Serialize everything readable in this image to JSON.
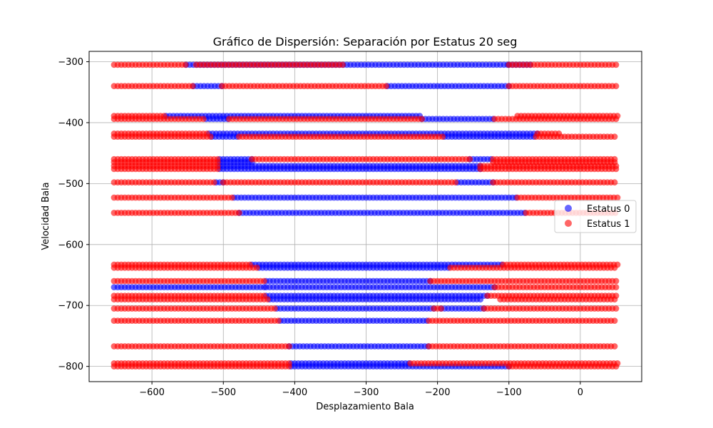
{
  "chart_data": {
    "type": "scatter",
    "title": "Gráfico de Dispersión: Separación por Estatus 20 seg",
    "xlabel": "Desplazamiento Bala",
    "ylabel": "Velocidad Bala",
    "xlim": [
      -688,
      86
    ],
    "ylim": [
      -825,
      -283
    ],
    "xticks": [
      -600,
      -500,
      -400,
      -300,
      -200,
      -100,
      0
    ],
    "yticks": [
      -300,
      -400,
      -500,
      -600,
      -700,
      -800
    ],
    "xtick_labels": [
      "−600",
      "−500",
      "−400",
      "−300",
      "−200",
      "−100",
      "0"
    ],
    "ytick_labels": [
      "−300",
      "−400",
      "−500",
      "−600",
      "−700",
      "−800"
    ],
    "grid": true,
    "legend": "center-right",
    "x_range": [
      -653,
      52
    ],
    "series": [
      {
        "name": "Estatus 0",
        "color": "#0000ff",
        "alpha": 0.6,
        "rows": [
          {
            "y": -305,
            "segments": [
              [
                -552,
                -100
              ],
              [
                -100,
                -66
              ]
            ]
          },
          {
            "y": -340,
            "segments": [
              [
                -542,
                -502
              ],
              [
                -270,
                -100
              ]
            ]
          },
          {
            "y": -389,
            "segments": [
              [
                -580,
                -222
              ]
            ]
          },
          {
            "y": -394,
            "segments": [
              [
                -524,
                -492
              ],
              [
                -222,
                -120
              ]
            ]
          },
          {
            "y": -418,
            "segments": [
              [
                -520,
                -60
              ]
            ]
          },
          {
            "y": -423,
            "segments": [
              [
                -516,
                -478
              ],
              [
                -190,
                -62
              ]
            ]
          },
          {
            "y": -460,
            "segments": [
              [
                -505,
                -460
              ],
              [
                -155,
                -122
              ]
            ]
          },
          {
            "y": -465,
            "segments": [
              [
                -505,
                -460
              ]
            ]
          },
          {
            "y": -471,
            "segments": [
              [
                -505,
                -140
              ]
            ]
          },
          {
            "y": -476,
            "segments": [
              [
                -505,
                -140
              ]
            ]
          },
          {
            "y": -498,
            "segments": [
              [
                -510,
                -500
              ],
              [
                -172,
                -122
              ]
            ]
          },
          {
            "y": -523,
            "segments": [
              [
                -485,
                -88
              ]
            ]
          },
          {
            "y": -548,
            "segments": [
              [
                -478,
                -76
              ]
            ]
          },
          {
            "y": -633,
            "segments": [
              [
                -460,
                -108
              ]
            ]
          },
          {
            "y": -638,
            "segments": [
              [
                -450,
                -182
              ]
            ]
          },
          {
            "y": -660,
            "segments": [
              [
                -440,
                -210
              ]
            ]
          },
          {
            "y": -670,
            "segments": [
              [
                -653,
                -440
              ],
              [
                -440,
                -120
              ]
            ]
          },
          {
            "y": -684,
            "segments": [
              [
                -440,
                -130
              ]
            ]
          },
          {
            "y": -690,
            "segments": [
              [
                -435,
                -140
              ]
            ]
          },
          {
            "y": -705,
            "segments": [
              [
                -425,
                -205
              ],
              [
                -195,
                -135
              ]
            ]
          },
          {
            "y": -725,
            "segments": [
              [
                -420,
                -212
              ]
            ]
          },
          {
            "y": -767,
            "segments": [
              [
                -408,
                -212
              ]
            ]
          },
          {
            "y": -795,
            "segments": [
              [
                -405,
                -238
              ]
            ]
          },
          {
            "y": -800,
            "segments": [
              [
                -405,
                -100
              ]
            ]
          }
        ]
      },
      {
        "name": "Estatus 1",
        "color": "#ff0000",
        "alpha": 0.6,
        "rows": [
          {
            "y": -305,
            "segments": [
              [
                -653,
                -552
              ],
              [
                -538,
                -330
              ],
              [
                -100,
                52
              ]
            ]
          },
          {
            "y": -340,
            "segments": [
              [
                -653,
                -542
              ],
              [
                -502,
                -270
              ],
              [
                -100,
                52
              ]
            ]
          },
          {
            "y": -389,
            "segments": [
              [
                -653,
                -580
              ],
              [
                -88,
                52
              ]
            ]
          },
          {
            "y": -394,
            "segments": [
              [
                -653,
                -524
              ],
              [
                -492,
                -222
              ],
              [
                -120,
                52
              ]
            ]
          },
          {
            "y": -418,
            "segments": [
              [
                -653,
                -520
              ],
              [
                -60,
                -30
              ]
            ]
          },
          {
            "y": -423,
            "segments": [
              [
                -653,
                -516
              ],
              [
                -478,
                -190
              ],
              [
                -62,
                52
              ]
            ]
          },
          {
            "y": -460,
            "segments": [
              [
                -653,
                -505
              ],
              [
                -460,
                -155
              ],
              [
                -122,
                52
              ]
            ]
          },
          {
            "y": -465,
            "segments": [
              [
                -653,
                -505
              ],
              [
                -122,
                52
              ]
            ]
          },
          {
            "y": -471,
            "segments": [
              [
                -653,
                -505
              ],
              [
                -140,
                52
              ]
            ]
          },
          {
            "y": -476,
            "segments": [
              [
                -653,
                -505
              ],
              [
                -140,
                52
              ]
            ]
          },
          {
            "y": -498,
            "segments": [
              [
                -653,
                -510
              ],
              [
                -500,
                -172
              ],
              [
                -122,
                52
              ]
            ]
          },
          {
            "y": -523,
            "segments": [
              [
                -653,
                -485
              ],
              [
                -88,
                52
              ]
            ]
          },
          {
            "y": -548,
            "segments": [
              [
                -653,
                -478
              ],
              [
                -76,
                52
              ]
            ]
          },
          {
            "y": -633,
            "segments": [
              [
                -653,
                -460
              ],
              [
                -108,
                52
              ]
            ]
          },
          {
            "y": -638,
            "segments": [
              [
                -653,
                -450
              ],
              [
                -182,
                52
              ]
            ]
          },
          {
            "y": -660,
            "segments": [
              [
                -653,
                -440
              ],
              [
                -210,
                52
              ]
            ]
          },
          {
            "y": -670,
            "segments": [
              [
                -120,
                52
              ]
            ]
          },
          {
            "y": -684,
            "segments": [
              [
                -653,
                -440
              ],
              [
                -130,
                52
              ]
            ]
          },
          {
            "y": -690,
            "segments": [
              [
                -653,
                -435
              ],
              [
                -112,
                52
              ]
            ]
          },
          {
            "y": -705,
            "segments": [
              [
                -653,
                -425
              ],
              [
                -205,
                -195
              ],
              [
                -135,
                52
              ]
            ]
          },
          {
            "y": -725,
            "segments": [
              [
                -653,
                -420
              ],
              [
                -212,
                52
              ]
            ]
          },
          {
            "y": -767,
            "segments": [
              [
                -653,
                -408
              ],
              [
                -212,
                52
              ]
            ]
          },
          {
            "y": -795,
            "segments": [
              [
                -653,
                -405
              ],
              [
                -238,
                52
              ]
            ]
          },
          {
            "y": -800,
            "segments": [
              [
                -653,
                -405
              ],
              [
                -100,
                52
              ]
            ]
          }
        ]
      }
    ]
  }
}
